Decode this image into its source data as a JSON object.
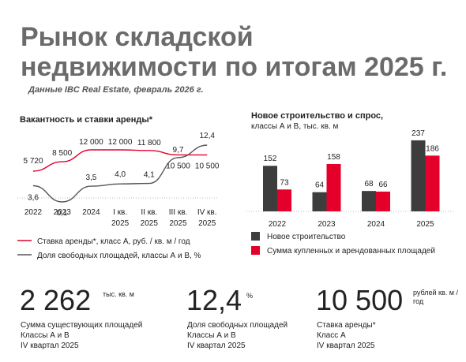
{
  "title": [
    "Рынок складской",
    "недвижимости по итогам 2025 г."
  ],
  "source": "Данные IBC Real Estate, февраль 2026 г.",
  "chart_data": [
    {
      "type": "line",
      "title": "Вакантность и ставки аренды*",
      "categories": [
        "2022",
        "2023",
        "2024",
        "I кв. 2025",
        "II кв. 2025",
        "III кв. 2025",
        "IV кв. 2025"
      ],
      "series": [
        {
          "name": "Ставка аренды*, класс А, руб. / кв. м / год",
          "color": "#e4002b",
          "values": [
            5720,
            8500,
            12000,
            12000,
            11800,
            10500,
            10500
          ],
          "value_labels": [
            "5 720",
            "8 500",
            "12 000",
            "12 000",
            "11 800",
            "10 500",
            "10 500"
          ]
        },
        {
          "name": "Доля свободных площадей, классы А и В, %",
          "color": "#555555",
          "axis": "y2",
          "values": [
            3.6,
            0.1,
            3.5,
            4.0,
            4.1,
            9.7,
            12.4
          ],
          "value_labels": [
            "3,6",
            "0,1",
            "3,5",
            "4,0",
            "4,1",
            "9,7",
            "12,4"
          ]
        }
      ]
    },
    {
      "type": "bar",
      "title": "Новое строительство и спрос,",
      "subtitle": "классы А и В, тыс. кв. м",
      "categories": [
        "2022",
        "2023",
        "2024",
        "2025"
      ],
      "series": [
        {
          "name": "Новое строительство",
          "color": "#3d3d3d",
          "values": [
            152,
            64,
            68,
            237
          ]
        },
        {
          "name": "Сумма купленных и арендованных площадей",
          "color": "#e4002b",
          "values": [
            73,
            158,
            66,
            186
          ]
        }
      ]
    }
  ],
  "kpis": [
    {
      "value": "2 262",
      "unit": "тыс. кв. м",
      "caption": [
        "Сумма существующих площадей",
        "Классы А и В",
        "IV квартал 2025"
      ]
    },
    {
      "value": "12,4",
      "unit": "%",
      "caption": [
        "Доля свободных площадей",
        "Классы А и В",
        "IV квартал 2025"
      ]
    },
    {
      "value": "10 500",
      "unit": "рублей кв. м / год",
      "caption": [
        "Ставка аренды*",
        "Класс А",
        "IV квартал 2025"
      ]
    }
  ]
}
